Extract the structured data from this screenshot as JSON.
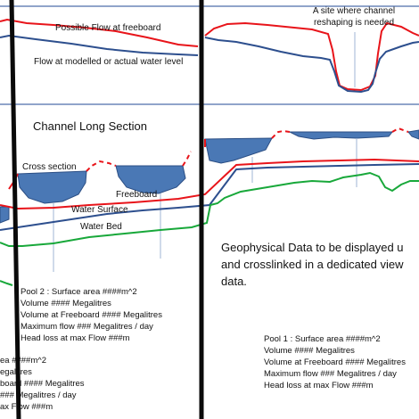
{
  "colors": {
    "flow_freeboard": "#e8141a",
    "flow_water_level": "#2d4f8e",
    "water_bed": "#18a83a",
    "pool_fill": "#4a78b5",
    "pool_stroke": "#2b4e84",
    "divider": "#0a0a0a",
    "panel_border": "#6b86b8",
    "leader": "#9fb4d6"
  },
  "top_panel": {
    "label_freeboard": "Possible Flow at freeboard",
    "label_water_level": "Flow at modelled or actual water level",
    "annotation_line1": "A site where channel",
    "annotation_line2": "reshaping is needed"
  },
  "long_section": {
    "title": "Channel Long Section",
    "label_cross_section": "Cross section",
    "label_freeboard": "Freeboard",
    "label_water_surface": "Water Surface",
    "label_water_bed": "Water Bed",
    "geo_line1": "Geophysical Data to be displayed u",
    "geo_line2": "and crosslinked in a dedicated view",
    "geo_line3": "data."
  },
  "pool2": {
    "title": "Pool 2 : Surface area ####m^2",
    "volume": "Volume #### Megalitres",
    "volume_freeboard": "Volume at Freeboard #### Megalitres",
    "max_flow": "Maximum flow ### Megalitres / day",
    "head_loss": "Head loss at max Flow ###m"
  },
  "pool1": {
    "title": "Pool 1 : Surface area ####m^2",
    "volume": "Volume #### Megalitres",
    "volume_freeboard": "Volume at Freeboard #### Megalitres",
    "max_flow": "Maximum flow ### Megalitres / day",
    "head_loss": "Head loss at max Flow ###m"
  },
  "pool0_partial": {
    "line1": "ea ####m^2",
    "line2": "egalitres",
    "line3": "board #### Megalitres",
    "line4": "### Megalitres / day",
    "line5": "ax Flow ###m"
  }
}
